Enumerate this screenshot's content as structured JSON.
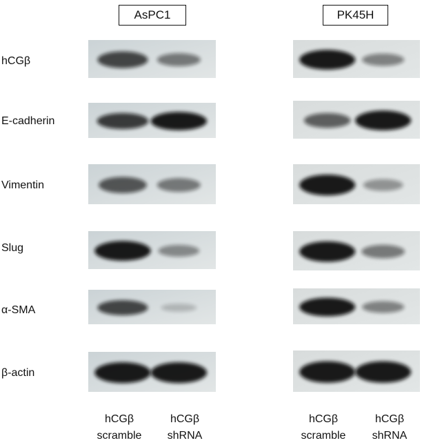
{
  "panels": [
    {
      "cell_line": "AsPC1"
    },
    {
      "cell_line": "PK45H"
    }
  ],
  "proteins": [
    "hCGβ",
    "E-cadherin",
    "Vimentin",
    "Slug",
    "α-SMA",
    "β-actin"
  ],
  "lanes": [
    {
      "line1": "hCGβ",
      "line2": "scramble"
    },
    {
      "line1": "hCGβ",
      "line2": "shRNA"
    }
  ],
  "band_intensity": {
    "AsPC1": [
      [
        0.75,
        0.45
      ],
      [
        0.8,
        1.0
      ],
      [
        0.65,
        0.45
      ],
      [
        1.0,
        0.35
      ],
      [
        0.75,
        0.1
      ],
      [
        1.0,
        1.0
      ]
    ],
    "PK45H": [
      [
        1.0,
        0.4
      ],
      [
        0.6,
        1.0
      ],
      [
        1.0,
        0.3
      ],
      [
        1.0,
        0.45
      ],
      [
        1.0,
        0.4
      ],
      [
        1.0,
        1.0
      ]
    ]
  },
  "colors": {
    "membrane_aspc1": "#cbd3d6",
    "membrane_pk45h": "#d8dcdc",
    "band": "#0b0b0b"
  }
}
